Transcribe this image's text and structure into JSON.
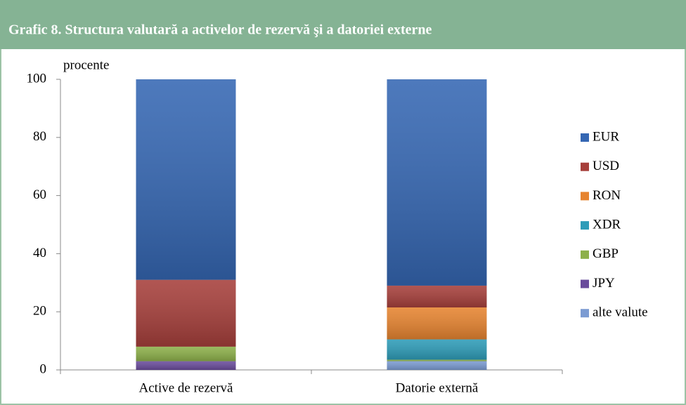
{
  "chart_data": {
    "type": "stacked_bar",
    "title": "Grafic 8. Structura valutară a activelor de rezervă şi a datoriei externe",
    "y_label": "procente",
    "categories": [
      "Active de rezervă",
      "Datorie externă"
    ],
    "series": [
      {
        "name": "alte valute",
        "color": "#7b9bd2",
        "values": [
          0,
          3
        ]
      },
      {
        "name": "JPY",
        "color": "#6a4c9c",
        "values": [
          3,
          0
        ]
      },
      {
        "name": "GBP",
        "color": "#8db04a",
        "values": [
          5,
          0.5
        ]
      },
      {
        "name": "XDR",
        "color": "#2e9cb8",
        "values": [
          0,
          7
        ]
      },
      {
        "name": "RON",
        "color": "#e68430",
        "values": [
          0,
          11
        ]
      },
      {
        "name": "USD",
        "color": "#a63f3b",
        "values": [
          23,
          7.5
        ]
      },
      {
        "name": "EUR",
        "color": "#3567b3",
        "values": [
          69,
          71
        ]
      }
    ],
    "ylim": [
      0,
      100
    ],
    "yticks": [
      0,
      20,
      40,
      60,
      80,
      100
    ]
  }
}
